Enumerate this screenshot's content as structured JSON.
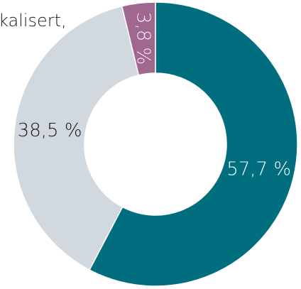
{
  "chart_data": {
    "type": "donut",
    "annotation": "kalisert,",
    "values": [
      57.7,
      38.5,
      3.8
    ],
    "value_labels": [
      "57,7 %",
      "38,5 %",
      "3,8 %"
    ],
    "colors": [
      "#006e7f",
      "#d1d9de",
      "#a0678f"
    ],
    "start_angle": 0,
    "direction": "clockwise"
  }
}
